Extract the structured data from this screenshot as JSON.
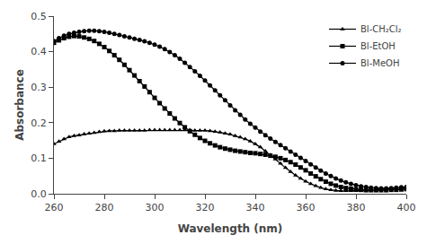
{
  "chart_data": {
    "type": "line",
    "xlabel": "Wavelength (nm)",
    "ylabel": "Absorbance",
    "x": [
      260,
      262,
      264,
      266,
      268,
      270,
      272,
      274,
      276,
      278,
      280,
      282,
      284,
      286,
      288,
      290,
      292,
      294,
      296,
      298,
      300,
      302,
      304,
      306,
      308,
      310,
      312,
      314,
      316,
      318,
      320,
      322,
      324,
      326,
      328,
      330,
      332,
      334,
      336,
      338,
      340,
      342,
      344,
      346,
      348,
      350,
      352,
      354,
      356,
      358,
      360,
      362,
      364,
      366,
      368,
      370,
      372,
      374,
      376,
      378,
      380,
      382,
      384,
      386,
      388,
      390,
      392,
      394,
      396,
      398,
      400
    ],
    "series": [
      {
        "name": "Bl-CH₂Cl₂",
        "color": "#000000",
        "marker": "triangle-up",
        "values": [
          0.14,
          0.147,
          0.154,
          0.16,
          0.163,
          0.165,
          0.168,
          0.17,
          0.172,
          0.174,
          0.176,
          0.177,
          0.177,
          0.178,
          0.178,
          0.178,
          0.178,
          0.178,
          0.178,
          0.179,
          0.179,
          0.179,
          0.179,
          0.179,
          0.179,
          0.179,
          0.179,
          0.179,
          0.178,
          0.178,
          0.178,
          0.177,
          0.175,
          0.173,
          0.17,
          0.167,
          0.163,
          0.159,
          0.154,
          0.148,
          0.14,
          0.131,
          0.12,
          0.109,
          0.097,
          0.085,
          0.073,
          0.062,
          0.052,
          0.043,
          0.035,
          0.028,
          0.022,
          0.017,
          0.013,
          0.011,
          0.009,
          0.008,
          0.008,
          0.008,
          0.008,
          0.009,
          0.01,
          0.01,
          0.011,
          0.012,
          0.013,
          0.014,
          0.015,
          0.016,
          0.017
        ]
      },
      {
        "name": "Bl-EtOH",
        "color": "#000000",
        "marker": "square",
        "values": [
          0.425,
          0.432,
          0.438,
          0.442,
          0.444,
          0.443,
          0.44,
          0.436,
          0.43,
          0.422,
          0.413,
          0.402,
          0.39,
          0.377,
          0.363,
          0.348,
          0.333,
          0.317,
          0.302,
          0.286,
          0.27,
          0.255,
          0.24,
          0.226,
          0.212,
          0.199,
          0.187,
          0.176,
          0.166,
          0.157,
          0.149,
          0.142,
          0.136,
          0.131,
          0.127,
          0.124,
          0.121,
          0.119,
          0.117,
          0.115,
          0.114,
          0.112,
          0.11,
          0.107,
          0.104,
          0.1,
          0.095,
          0.089,
          0.082,
          0.074,
          0.066,
          0.057,
          0.049,
          0.041,
          0.034,
          0.028,
          0.023,
          0.019,
          0.016,
          0.014,
          0.012,
          0.011,
          0.01,
          0.01,
          0.01,
          0.01,
          0.01,
          0.011,
          0.011,
          0.012,
          0.013
        ]
      },
      {
        "name": "Bl-MeOH",
        "color": "#000000",
        "marker": "circle",
        "values": [
          0.43,
          0.438,
          0.445,
          0.45,
          0.453,
          0.456,
          0.458,
          0.459,
          0.459,
          0.458,
          0.456,
          0.453,
          0.45,
          0.447,
          0.443,
          0.44,
          0.436,
          0.433,
          0.429,
          0.425,
          0.42,
          0.414,
          0.407,
          0.399,
          0.39,
          0.38,
          0.369,
          0.357,
          0.345,
          0.332,
          0.319,
          0.305,
          0.291,
          0.277,
          0.263,
          0.249,
          0.235,
          0.222,
          0.209,
          0.197,
          0.186,
          0.175,
          0.165,
          0.155,
          0.146,
          0.137,
          0.128,
          0.119,
          0.11,
          0.101,
          0.092,
          0.083,
          0.074,
          0.065,
          0.057,
          0.05,
          0.043,
          0.037,
          0.032,
          0.028,
          0.024,
          0.021,
          0.019,
          0.017,
          0.016,
          0.015,
          0.015,
          0.016,
          0.017,
          0.018,
          0.019
        ]
      }
    ],
    "xlim": [
      260,
      400
    ],
    "ylim": [
      0,
      0.5
    ],
    "xticks": [
      260,
      280,
      300,
      320,
      340,
      360,
      380,
      400
    ],
    "yticks": [
      {
        "value": 0,
        "label": "0.0"
      },
      0.1,
      0.2,
      0.3,
      0.4,
      0.5
    ],
    "grid": false,
    "legend": "upper right"
  }
}
